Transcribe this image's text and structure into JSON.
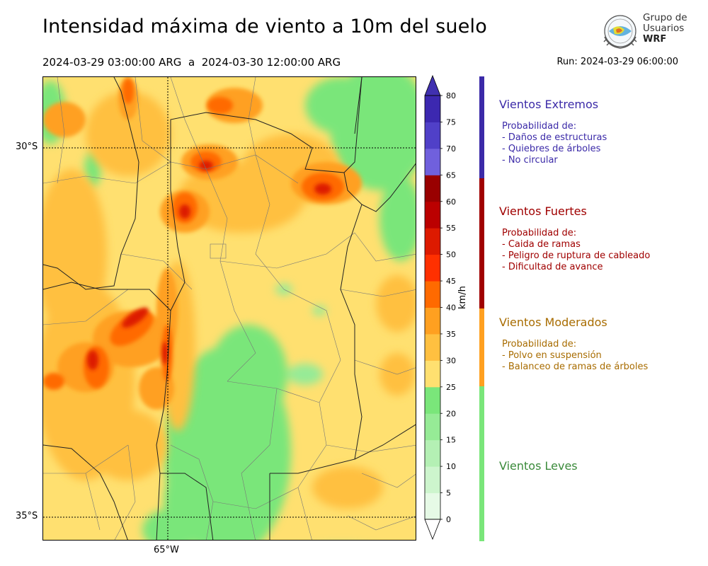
{
  "title": "Intensidad máxima de viento a 10m del suelo",
  "period": {
    "start": "2024-03-29 03:00:00 ARG",
    "sep": "a",
    "end": "2024-03-30 12:00:00 ARG"
  },
  "run": "Run: 2024-03-29 06:00:00",
  "logo": {
    "line1": "Grupo de",
    "line2": "Usuarios",
    "line3": "WRF"
  },
  "map": {
    "lat_labels": [
      "30°S",
      "35°S"
    ],
    "lon_labels": [
      "65°W"
    ]
  },
  "colorbar": {
    "unit": "km/h",
    "ticks": [
      "0",
      "5",
      "10",
      "15",
      "20",
      "25",
      "30",
      "35",
      "40",
      "45",
      "50",
      "55",
      "60",
      "65",
      "70",
      "75",
      "80"
    ],
    "levels": [
      0,
      5,
      10,
      15,
      20,
      25,
      30,
      35,
      40,
      45,
      50,
      55,
      60,
      65,
      70,
      75,
      80
    ],
    "colors": [
      "#e6fae6",
      "#cdf5cd",
      "#b4f0b4",
      "#96eb96",
      "#7ae67a",
      "#ffe070",
      "#ffc040",
      "#ffa020",
      "#ff6a00",
      "#ff3000",
      "#dd1a00",
      "#bb0000",
      "#990000",
      "#7060dd",
      "#5040c8",
      "#3c28b0",
      "#4030b0"
    ]
  },
  "categories": [
    {
      "title": "Vientos Extremos",
      "color": "#3b2aa8",
      "lines": [
        "Probabilidad de:",
        "- Daños de estructuras",
        "- Quiebres de árboles",
        "- No circular"
      ]
    },
    {
      "title": "Vientos Fuertes",
      "color": "#a00000",
      "lines": [
        "Probabilidad de:",
        "- Caida de ramas",
        "- Peligro de ruptura de cableado",
        "- Dificultad de avance"
      ]
    },
    {
      "title": "Vientos Moderados",
      "color": "#a86c00",
      "lines": [
        "Probabilidad de:",
        "- Polvo en suspensión",
        "- Balanceo de ramas de árboles"
      ]
    },
    {
      "title": "Vientos Leves",
      "color": "#3a8a3a",
      "lines": []
    }
  ]
}
